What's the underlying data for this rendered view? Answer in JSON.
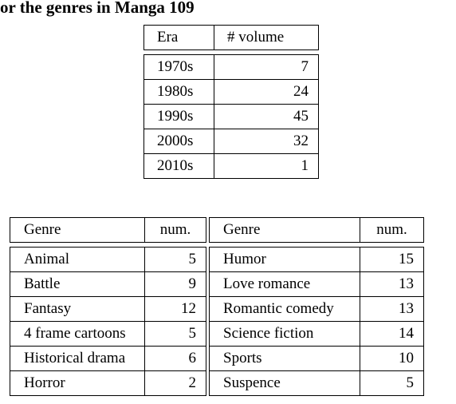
{
  "caption": "or the genres in Manga 109",
  "era_table": {
    "headers": [
      "Era",
      "# volume"
    ],
    "rows": [
      {
        "era": "1970s",
        "volume": "7"
      },
      {
        "era": "1980s",
        "volume": "24"
      },
      {
        "era": "1990s",
        "volume": "45"
      },
      {
        "era": "2000s",
        "volume": "32"
      },
      {
        "era": "2010s",
        "volume": "1"
      }
    ]
  },
  "genre_table": {
    "headers": [
      "Genre",
      "num.",
      "Genre",
      "num."
    ],
    "rows": [
      {
        "genre_a": "Animal",
        "num_a": "5",
        "genre_b": "Humor",
        "num_b": "15"
      },
      {
        "genre_a": "Battle",
        "num_a": "9",
        "genre_b": "Love romance",
        "num_b": "13"
      },
      {
        "genre_a": "Fantasy",
        "num_a": "12",
        "genre_b": "Romantic comedy",
        "num_b": "13"
      },
      {
        "genre_a": "4 frame cartoons",
        "num_a": "5",
        "genre_b": "Science fiction",
        "num_b": "14"
      },
      {
        "genre_a": "Historical drama",
        "num_a": "6",
        "genre_b": "Sports",
        "num_b": "10"
      },
      {
        "genre_a": "Horror",
        "num_a": "2",
        "genre_b": "Suspence",
        "num_b": "5"
      }
    ]
  }
}
